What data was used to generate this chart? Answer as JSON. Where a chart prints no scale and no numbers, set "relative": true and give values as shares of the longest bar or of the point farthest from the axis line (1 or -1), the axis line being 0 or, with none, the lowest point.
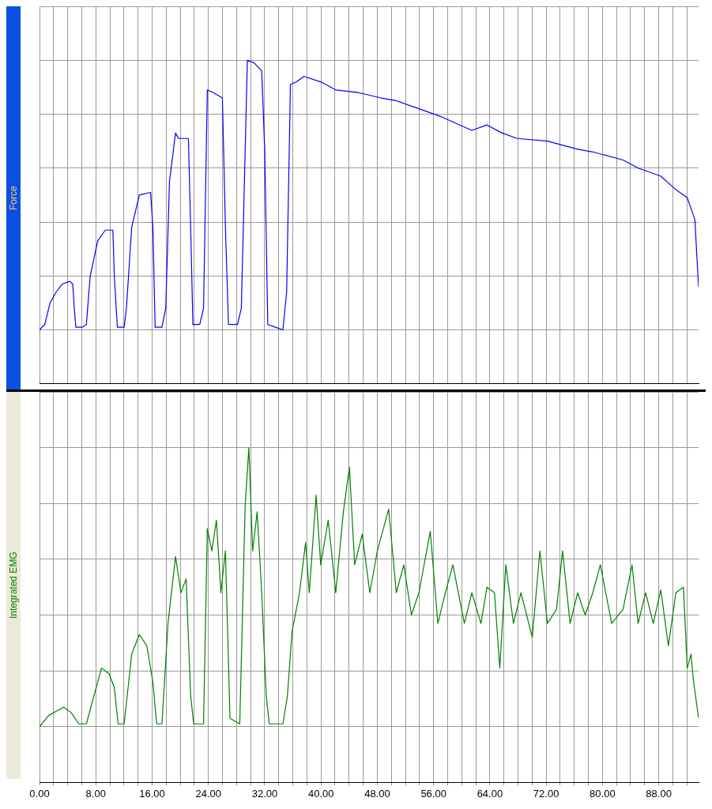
{
  "chart_data": [
    {
      "type": "line",
      "ylabel": "Force",
      "relative": true,
      "grid": true,
      "tick_labels": false,
      "xlim": [
        0,
        93.66
      ],
      "xticks": [
        0,
        2,
        4,
        6,
        8,
        10,
        12,
        14,
        16,
        18,
        20,
        22,
        24,
        26,
        28,
        30,
        32,
        34,
        36,
        38,
        40,
        42,
        44,
        46,
        48,
        50,
        52,
        54,
        56,
        58,
        60,
        62,
        64,
        66,
        68,
        70,
        72,
        74,
        76,
        78,
        80,
        82,
        84,
        86,
        88,
        90,
        92
      ],
      "x": [
        0,
        0.75,
        1.5,
        2.36,
        3.22,
        4.3,
        4.73,
        4.94,
        5.16,
        6.12,
        6.66,
        7.2,
        8.27,
        9.35,
        10.42,
        10.63,
        11.06,
        12.03,
        12.35,
        13.1,
        14.18,
        15.79,
        16.11,
        16.43,
        17.4,
        17.94,
        18.47,
        19.33,
        19.76,
        21.16,
        21.48,
        21.8,
        22.77,
        23.31,
        23.85,
        24.7,
        25.99,
        26.42,
        26.85,
        28.14,
        28.68,
        29.54,
        30.5,
        31.58,
        32.0,
        32.44,
        33.51,
        34.59,
        35.12,
        35.66,
        36.52,
        37.59,
        39.96,
        42.1,
        45.33,
        48.55,
        50.7,
        53.92,
        57.14,
        61.44,
        63.59,
        65.74,
        67.88,
        72.18,
        76.48,
        78.63,
        82.92,
        85.07,
        88.29,
        90.44,
        92.05,
        93.13,
        93.66
      ],
      "series": [
        {
          "color": "#0000ff",
          "values": [
            0,
            0.02,
            0.1,
            0.14,
            0.17,
            0.18,
            0.17,
            0.08,
            0.01,
            0.01,
            0.02,
            0.2,
            0.33,
            0.37,
            0.37,
            0.2,
            0.01,
            0.01,
            0.08,
            0.38,
            0.5,
            0.51,
            0.38,
            0.01,
            0.01,
            0.08,
            0.55,
            0.73,
            0.71,
            0.71,
            0.38,
            0.02,
            0.02,
            0.08,
            0.89,
            0.88,
            0.86,
            0.38,
            0.02,
            0.02,
            0.08,
            1,
            0.99,
            0.96,
            0.67,
            0.02,
            0.01,
            0,
            0.14,
            0.91,
            0.92,
            0.94,
            0.92,
            0.89,
            0.88,
            0.86,
            0.85,
            0.82,
            0.79,
            0.74,
            0.76,
            0.73,
            0.71,
            0.7,
            0.67,
            0.66,
            0.63,
            0.6,
            0.57,
            0.52,
            0.49,
            0.41,
            0.16
          ]
        }
      ]
    },
    {
      "type": "line",
      "ylabel": "Integrated EMG",
      "relative": true,
      "grid": true,
      "tick_labels": "x",
      "xlim": [
        0,
        93.66
      ],
      "xticks": [
        {
          "value": 0,
          "label": "0.00"
        },
        {
          "value": 2,
          "label": null
        },
        {
          "value": 4,
          "label": null
        },
        {
          "value": 6,
          "label": null
        },
        {
          "value": 8,
          "label": "8.00"
        },
        {
          "value": 10,
          "label": null
        },
        {
          "value": 12,
          "label": null
        },
        {
          "value": 14,
          "label": null
        },
        {
          "value": 16,
          "label": "16.00"
        },
        {
          "value": 18,
          "label": null
        },
        {
          "value": 20,
          "label": null
        },
        {
          "value": 22,
          "label": null
        },
        {
          "value": 24,
          "label": "24.00"
        },
        {
          "value": 26,
          "label": null
        },
        {
          "value": 28,
          "label": null
        },
        {
          "value": 30,
          "label": null
        },
        {
          "value": 32,
          "label": "32.00"
        },
        {
          "value": 34,
          "label": null
        },
        {
          "value": 36,
          "label": null
        },
        {
          "value": 38,
          "label": null
        },
        {
          "value": 40,
          "label": "40.00"
        },
        {
          "value": 42,
          "label": null
        },
        {
          "value": 44,
          "label": null
        },
        {
          "value": 46,
          "label": null
        },
        {
          "value": 48,
          "label": "48.00"
        },
        {
          "value": 50,
          "label": null
        },
        {
          "value": 52,
          "label": null
        },
        {
          "value": 54,
          "label": null
        },
        {
          "value": 56,
          "label": "56.00"
        },
        {
          "value": 58,
          "label": null
        },
        {
          "value": 60,
          "label": null
        },
        {
          "value": 62,
          "label": null
        },
        {
          "value": 64,
          "label": "64.00"
        },
        {
          "value": 66,
          "label": null
        },
        {
          "value": 68,
          "label": null
        },
        {
          "value": 70,
          "label": null
        },
        {
          "value": 72,
          "label": "72.00"
        },
        {
          "value": 74,
          "label": null
        },
        {
          "value": 76,
          "label": null
        },
        {
          "value": 78,
          "label": null
        },
        {
          "value": 80,
          "label": "80.00"
        },
        {
          "value": 82,
          "label": null
        },
        {
          "value": 84,
          "label": null
        },
        {
          "value": 86,
          "label": null
        },
        {
          "value": 88,
          "label": "88.00"
        },
        {
          "value": 90,
          "label": null
        },
        {
          "value": 92,
          "label": null
        }
      ],
      "x": [
        0,
        1.29,
        3.44,
        4.51,
        5.59,
        6.66,
        7.73,
        8.81,
        9.88,
        10.63,
        11.17,
        12.03,
        13.1,
        14.18,
        15.25,
        16.11,
        16.65,
        17.4,
        18.26,
        19.33,
        20.09,
        20.84,
        21.48,
        21.91,
        23.31,
        23.85,
        24.49,
        25.14,
        25.78,
        26.42,
        27.07,
        28.46,
        29.22,
        29.75,
        30.29,
        30.93,
        31.58,
        32.22,
        32.65,
        34.59,
        35.23,
        35.88,
        36.95,
        37.81,
        38.34,
        39.31,
        39.96,
        41.03,
        42.1,
        43.18,
        44.04,
        44.79,
        45.86,
        46.94,
        48.01,
        49.62,
        50.7,
        51.77,
        52.85,
        53.92,
        55.53,
        56.61,
        57.68,
        58.75,
        60.37,
        61.44,
        62.73,
        63.59,
        64.66,
        65.41,
        66.27,
        67.35,
        68.42,
        70.03,
        71.11,
        72.18,
        73.47,
        74.33,
        75.4,
        76.48,
        77.55,
        78.63,
        79.7,
        81.31,
        82.92,
        84.21,
        85.07,
        86.14,
        87.22,
        88.29,
        89.37,
        90.44,
        91.51,
        92.05,
        92.59,
        92.91,
        93.66
      ],
      "series": [
        {
          "color": "#008000",
          "values": [
            0,
            0.04,
            0.07,
            0.05,
            0.01,
            0.01,
            0.11,
            0.21,
            0.19,
            0.14,
            0.01,
            0.01,
            0.26,
            0.33,
            0.29,
            0.16,
            0.01,
            0.01,
            0.37,
            0.61,
            0.48,
            0.53,
            0.11,
            0.01,
            0.01,
            0.71,
            0.63,
            0.74,
            0.48,
            0.63,
            0.03,
            0.01,
            0.79,
            1,
            0.63,
            0.77,
            0.48,
            0.11,
            0.01,
            0.01,
            0.11,
            0.34,
            0.48,
            0.66,
            0.48,
            0.83,
            0.58,
            0.74,
            0.48,
            0.77,
            0.93,
            0.58,
            0.69,
            0.48,
            0.63,
            0.78,
            0.48,
            0.58,
            0.4,
            0.48,
            0.7,
            0.37,
            0.48,
            0.58,
            0.37,
            0.48,
            0.37,
            0.5,
            0.48,
            0.21,
            0.58,
            0.37,
            0.48,
            0.32,
            0.63,
            0.37,
            0.42,
            0.63,
            0.37,
            0.48,
            0.4,
            0.48,
            0.58,
            0.37,
            0.42,
            0.58,
            0.37,
            0.48,
            0.37,
            0.49,
            0.29,
            0.48,
            0.5,
            0.21,
            0.26,
            0.17,
            0.03
          ]
        }
      ]
    }
  ]
}
